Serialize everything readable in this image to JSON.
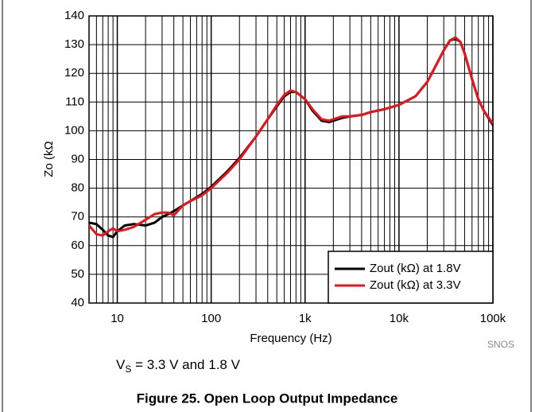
{
  "chart_data": {
    "type": "line",
    "x_label": "Frequency (Hz)",
    "y_label": "Zo (kΩ",
    "xlog": true,
    "grid": true,
    "legend": "lower right",
    "xlim": [
      5,
      100000
    ],
    "xticks": [
      10,
      100,
      {
        "value": 1000,
        "label": "1k"
      },
      {
        "value": 10000,
        "label": "10k"
      },
      {
        "value": 100000,
        "label": "100k"
      }
    ],
    "ylim": [
      40,
      140
    ],
    "yticks": [
      40,
      50,
      60,
      70,
      80,
      90,
      100,
      110,
      120,
      130,
      140
    ],
    "x": [
      5,
      6,
      7,
      8,
      9,
      10,
      12,
      15,
      20,
      25,
      30,
      35,
      40,
      50,
      60,
      80,
      100,
      150,
      200,
      300,
      400,
      500,
      600,
      700,
      800,
      1000,
      1200,
      1500,
      1800,
      2000,
      2500,
      3000,
      4000,
      5000,
      7000,
      10000,
      15000,
      20000,
      25000,
      30000,
      35000,
      40000,
      45000,
      50000,
      60000,
      70000,
      80000,
      100000
    ],
    "series": [
      {
        "name": "Zout (kΩ) at 1.8V",
        "color": "#000000",
        "values": [
          68,
          67.5,
          65.5,
          63.5,
          63,
          65,
          67,
          67.5,
          67,
          68,
          70,
          71,
          72,
          74,
          75.5,
          78,
          80.5,
          86,
          90.5,
          98,
          104,
          108.5,
          112,
          113.5,
          113.5,
          111,
          107,
          103.5,
          103,
          103.5,
          104.5,
          105,
          105.5,
          106.5,
          107.5,
          109,
          112,
          117,
          123,
          128,
          131.5,
          132,
          131,
          127,
          118,
          111,
          107,
          102
        ]
      },
      {
        "name": "Zout (kΩ) at 3.3V",
        "color": "#e8141c",
        "values": [
          67,
          64,
          63.5,
          65,
          66,
          65,
          65.5,
          66.5,
          69,
          71,
          71.5,
          71.5,
          70.5,
          74,
          75.5,
          77.5,
          80,
          85.5,
          90,
          98,
          104,
          109,
          112.5,
          114,
          113.5,
          111,
          107.5,
          104,
          103.5,
          104,
          105,
          105,
          105.5,
          106.5,
          107.5,
          109,
          112,
          117,
          123,
          128,
          131.5,
          132.5,
          131,
          127,
          118,
          111,
          107,
          102.5
        ]
      }
    ],
    "source": "SNOS",
    "condition": {
      "symbol": "V",
      "subscript": "S",
      "text": " = 3.3 V and 1.8 V"
    },
    "caption": "Figure 25. Open Loop Output Impedance"
  }
}
